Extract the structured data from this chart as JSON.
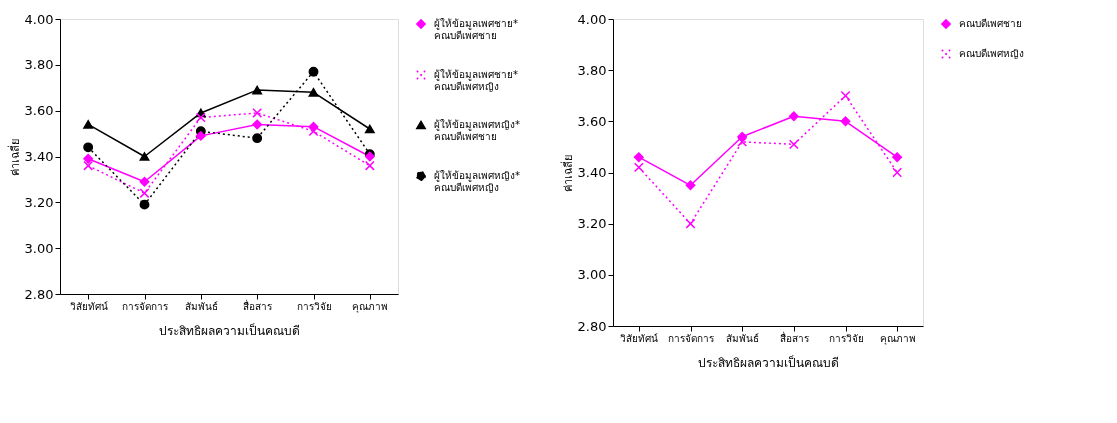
{
  "chart_data": [
    {
      "type": "line",
      "categories": [
        "วิสัยทัศน์",
        "การจัดการ",
        "สัมพันธ์",
        "สื่อสาร",
        "การวิจัย",
        "คุณภาพ"
      ],
      "xlabel": "ประสิทธิผลความเป็นคณบดี",
      "ylabel": "ค่าเฉลี่ย",
      "ylim": [
        2.8,
        4.0
      ],
      "yticks": [
        {
          "value": 2.8,
          "label": "2.80"
        },
        {
          "value": 3.0,
          "label": "3.00"
        },
        {
          "value": 3.2,
          "label": "3.20"
        },
        {
          "value": 3.4,
          "label": "3.40"
        },
        {
          "value": 3.6,
          "label": "3.60"
        },
        {
          "value": 3.8,
          "label": "3.80"
        },
        {
          "value": 4.0,
          "label": "4.00"
        }
      ],
      "legend": "right",
      "grid": false,
      "series": [
        {
          "name": "ผู้ให้ข้อมูลเพศชาย*\nคณบดีเพศชาย",
          "color": "#ff00ff",
          "marker": "diamond",
          "line_style": "solid",
          "values": [
            3.39,
            3.29,
            3.49,
            3.54,
            3.53,
            3.4
          ]
        },
        {
          "name": "ผู้ให้ข้อมูลเพศชาย*\nคณบดีเพศหญิง",
          "color": "#ff00ff",
          "marker": "cross",
          "line_style": "dotted",
          "values": [
            3.36,
            3.24,
            3.57,
            3.59,
            3.51,
            3.36
          ]
        },
        {
          "name": "ผู้ให้ข้อมูลเพศหญิง*\nคณบดีเพศชาย",
          "color": "#000000",
          "marker": "triangle",
          "line_style": "solid",
          "values": [
            3.54,
            3.4,
            3.59,
            3.69,
            3.68,
            3.52
          ]
        },
        {
          "name": "ผู้ให้ข้อมูลเพศหญิง*\nคณบดีเพศหญิง",
          "color": "#000000",
          "marker": "circle",
          "line_style": "dotted",
          "values": [
            3.44,
            3.19,
            3.51,
            3.48,
            3.77,
            3.41
          ]
        }
      ]
    },
    {
      "type": "line",
      "categories": [
        "วิสัยทัศน์",
        "การจัดการ",
        "สัมพันธ์",
        "สื่อสาร",
        "การวิจัย",
        "คุณภาพ"
      ],
      "xlabel": "ประสิทธิผลความเป็นคณบดี",
      "ylabel": "ค่าเฉลี่ย",
      "ylim": [
        2.8,
        4.0
      ],
      "yticks": [
        {
          "value": 2.8,
          "label": "2.80"
        },
        {
          "value": 3.0,
          "label": "3.00"
        },
        {
          "value": 3.2,
          "label": "3.20"
        },
        {
          "value": 3.4,
          "label": "3.40"
        },
        {
          "value": 3.6,
          "label": "3.60"
        },
        {
          "value": 3.8,
          "label": "3.80"
        },
        {
          "value": 4.0,
          "label": "4.00"
        }
      ],
      "legend": "right",
      "grid": false,
      "series": [
        {
          "name": "คณบดีเพศชาย",
          "color": "#ff00ff",
          "marker": "diamond",
          "line_style": "solid",
          "values": [
            3.46,
            3.35,
            3.54,
            3.62,
            3.6,
            3.46
          ]
        },
        {
          "name": "คณบดีเพศหญิง",
          "color": "#ff00ff",
          "marker": "cross",
          "line_style": "dotted",
          "values": [
            3.42,
            3.2,
            3.52,
            3.51,
            3.7,
            3.4
          ]
        }
      ]
    }
  ]
}
